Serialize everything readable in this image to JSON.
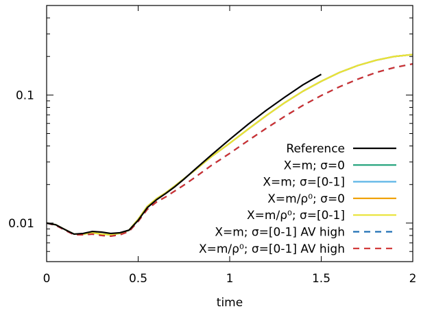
{
  "chart_data": {
    "type": "line",
    "xlabel": "time",
    "ylabel": "",
    "xlim": [
      0,
      2
    ],
    "ylim": [
      0.005,
      0.5
    ],
    "yscale": "log",
    "x_ticks": [
      "0",
      "0.5",
      "1",
      "1.5",
      "2"
    ],
    "y_ticks": [
      "0.01",
      "0.1"
    ],
    "grid": false,
    "legend_position": "bottom-right",
    "series": [
      {
        "name": "Reference",
        "color": "#000000",
        "dash": "solid",
        "x": [
          0,
          0.05,
          0.1,
          0.15,
          0.2,
          0.25,
          0.3,
          0.35,
          0.4,
          0.45,
          0.5,
          0.55,
          0.6,
          0.65,
          0.7,
          0.75,
          0.8,
          0.9,
          1.0,
          1.1,
          1.2,
          1.3,
          1.4,
          1.5
        ],
        "y": [
          0.01,
          0.0097,
          0.0089,
          0.0082,
          0.0083,
          0.0086,
          0.0085,
          0.0083,
          0.0084,
          0.0088,
          0.0105,
          0.0132,
          0.0152,
          0.017,
          0.0192,
          0.022,
          0.0255,
          0.034,
          0.045,
          0.059,
          0.076,
          0.096,
          0.12,
          0.145
        ]
      },
      {
        "name": "X=m; σ=0",
        "color": "#1a9f76",
        "dash": "solid",
        "x": [
          0,
          0.05,
          0.1,
          0.15,
          0.2,
          0.25,
          0.3,
          0.35,
          0.4,
          0.45,
          0.5,
          0.55,
          0.6,
          0.65,
          0.7,
          0.75,
          0.8,
          0.9,
          1.0,
          1.1,
          1.2,
          1.3,
          1.4,
          1.5,
          1.6,
          1.7,
          1.8,
          1.9,
          2.0
        ],
        "y": [
          0.01,
          0.0097,
          0.0089,
          0.0082,
          0.0082,
          0.0084,
          0.0082,
          0.0081,
          0.0083,
          0.0088,
          0.0107,
          0.0135,
          0.0155,
          0.0172,
          0.0195,
          0.0222,
          0.0252,
          0.033,
          0.042,
          0.054,
          0.069,
          0.087,
          0.107,
          0.128,
          0.15,
          0.17,
          0.187,
          0.2,
          0.207
        ]
      },
      {
        "name": "X=m; σ=[0-1]",
        "color": "#5ab4e5",
        "dash": "solid",
        "x": [
          0,
          0.05,
          0.1,
          0.15,
          0.2,
          0.25,
          0.3,
          0.35,
          0.4,
          0.45,
          0.5,
          0.55,
          0.6,
          0.65,
          0.7,
          0.75,
          0.8,
          0.9,
          1.0,
          1.1,
          1.2,
          1.3,
          1.4,
          1.5,
          1.6,
          1.7,
          1.8,
          1.9,
          2.0
        ],
        "y": [
          0.01,
          0.0097,
          0.0089,
          0.0082,
          0.0082,
          0.0084,
          0.0082,
          0.0081,
          0.0083,
          0.0088,
          0.0107,
          0.0135,
          0.0155,
          0.0172,
          0.0195,
          0.0222,
          0.0252,
          0.033,
          0.042,
          0.054,
          0.069,
          0.087,
          0.107,
          0.128,
          0.15,
          0.17,
          0.187,
          0.2,
          0.207
        ]
      },
      {
        "name": "X=m/ρ⁰; σ=0",
        "color": "#f0a30a",
        "dash": "solid",
        "x": [
          0,
          0.05,
          0.1,
          0.15,
          0.2,
          0.25,
          0.3,
          0.35,
          0.4,
          0.45,
          0.5,
          0.55,
          0.6,
          0.65,
          0.7,
          0.75,
          0.8,
          0.9,
          1.0,
          1.1,
          1.2,
          1.3,
          1.4,
          1.5,
          1.6,
          1.7,
          1.8,
          1.9,
          2.0
        ],
        "y": [
          0.01,
          0.0097,
          0.0089,
          0.0082,
          0.0082,
          0.0084,
          0.0082,
          0.0081,
          0.0083,
          0.0088,
          0.0107,
          0.0135,
          0.0155,
          0.0172,
          0.0195,
          0.0222,
          0.0252,
          0.033,
          0.042,
          0.054,
          0.069,
          0.087,
          0.107,
          0.128,
          0.15,
          0.17,
          0.187,
          0.2,
          0.207
        ]
      },
      {
        "name": "X=m/ρ⁰; σ=[0-1]",
        "color": "#e8e337",
        "dash": "solid",
        "x": [
          0,
          0.05,
          0.1,
          0.15,
          0.2,
          0.25,
          0.3,
          0.35,
          0.4,
          0.45,
          0.5,
          0.55,
          0.6,
          0.65,
          0.7,
          0.75,
          0.8,
          0.9,
          1.0,
          1.1,
          1.2,
          1.3,
          1.4,
          1.5,
          1.6,
          1.7,
          1.8,
          1.9,
          2.0
        ],
        "y": [
          0.01,
          0.0097,
          0.0089,
          0.0082,
          0.0082,
          0.0084,
          0.0082,
          0.0081,
          0.0083,
          0.0088,
          0.0107,
          0.0135,
          0.0155,
          0.0172,
          0.0195,
          0.0222,
          0.0252,
          0.033,
          0.042,
          0.054,
          0.069,
          0.087,
          0.107,
          0.128,
          0.15,
          0.17,
          0.187,
          0.2,
          0.207
        ]
      },
      {
        "name": "X=m; σ=[0-1] AV high",
        "color": "#1f6fb4",
        "dash": "dashed",
        "x": [
          0,
          0.05,
          0.1,
          0.15,
          0.2,
          0.25,
          0.3,
          0.35,
          0.4,
          0.45,
          0.5,
          0.55,
          0.6,
          0.65,
          0.7,
          0.75,
          0.8,
          0.9,
          1.0,
          1.1,
          1.2,
          1.3,
          1.4,
          1.5,
          1.6,
          1.7,
          1.8,
          1.9,
          2.0
        ],
        "y": [
          0.01,
          0.0096,
          0.0088,
          0.0081,
          0.0081,
          0.0082,
          0.008,
          0.0079,
          0.0081,
          0.0086,
          0.0103,
          0.0128,
          0.0146,
          0.016,
          0.0178,
          0.0198,
          0.0222,
          0.0282,
          0.035,
          0.044,
          0.055,
          0.068,
          0.083,
          0.099,
          0.116,
          0.133,
          0.15,
          0.164,
          0.175
        ]
      },
      {
        "name": "X=m/ρ⁰; σ=[0-1] AV high",
        "color": "#d03030",
        "dash": "dashed",
        "x": [
          0,
          0.05,
          0.1,
          0.15,
          0.2,
          0.25,
          0.3,
          0.35,
          0.4,
          0.45,
          0.5,
          0.55,
          0.6,
          0.65,
          0.7,
          0.75,
          0.8,
          0.9,
          1.0,
          1.1,
          1.2,
          1.3,
          1.4,
          1.5,
          1.6,
          1.7,
          1.8,
          1.9,
          2.0
        ],
        "y": [
          0.01,
          0.0096,
          0.0088,
          0.0081,
          0.0081,
          0.0082,
          0.008,
          0.0079,
          0.0081,
          0.0086,
          0.0103,
          0.0128,
          0.0146,
          0.016,
          0.0178,
          0.0198,
          0.0222,
          0.0282,
          0.035,
          0.044,
          0.055,
          0.068,
          0.083,
          0.099,
          0.116,
          0.133,
          0.15,
          0.164,
          0.175
        ]
      }
    ]
  }
}
